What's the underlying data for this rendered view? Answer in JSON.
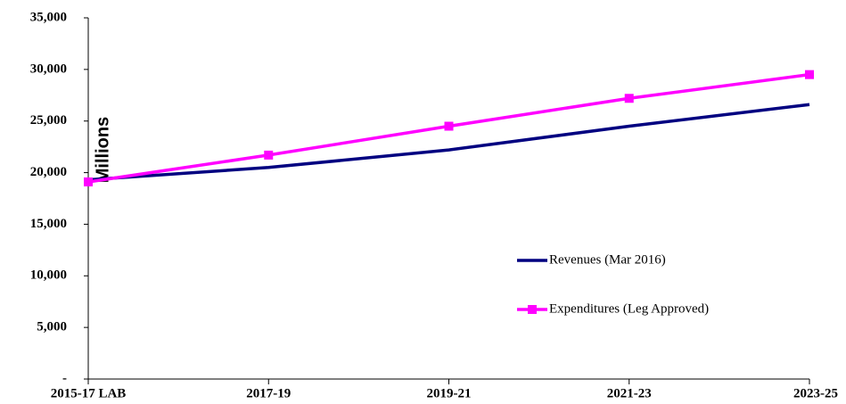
{
  "chart_data": {
    "type": "line",
    "y_axis_label": "Millions",
    "categories": [
      "2015-17 LAB",
      "2017-19",
      "2019-21",
      "2021-23",
      "2023-25"
    ],
    "series": [
      {
        "name": "Revenues (Mar 2016)",
        "color": "#000080",
        "marker": "none",
        "values": [
          19300,
          20500,
          22200,
          24500,
          26600
        ]
      },
      {
        "name": "Expenditures (Leg Approved)",
        "color": "#ff00ff",
        "marker": "square",
        "values": [
          19100,
          21700,
          24500,
          27200,
          29500
        ]
      }
    ],
    "ylim": [
      0,
      35000
    ],
    "yticks": [
      {
        "value": 0,
        "label": "-"
      },
      {
        "value": 5000,
        "label": "5,000"
      },
      {
        "value": 10000,
        "label": "10,000"
      },
      {
        "value": 15000,
        "label": "15,000"
      },
      {
        "value": 20000,
        "label": "20,000"
      },
      {
        "value": 25000,
        "label": "25,000"
      },
      {
        "value": 30000,
        "label": "30,000"
      },
      {
        "value": 35000,
        "label": "35,000"
      }
    ],
    "grid": false,
    "legend_position": "right"
  }
}
